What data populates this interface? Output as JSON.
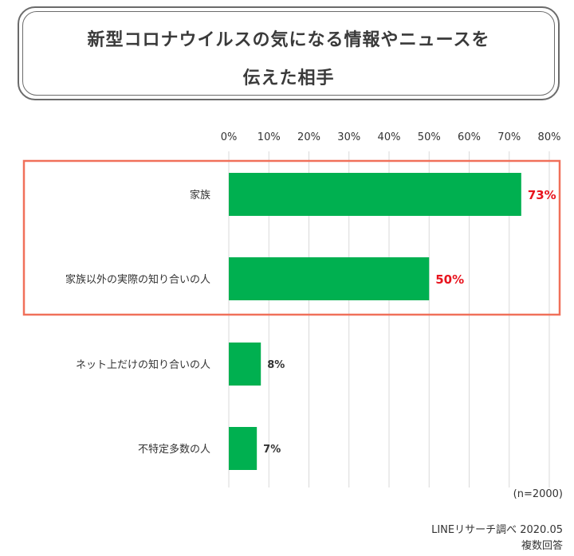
{
  "header": {
    "title_line1": "新型コロナウイルスの気になる情報やニュースを",
    "title_line2": "伝えた相手"
  },
  "chart_data": {
    "type": "bar",
    "orientation": "horizontal",
    "categories": [
      "家族",
      "家族以外の実際の知り合いの人",
      "ネット上だけの知り合いの人",
      "不特定多数の人"
    ],
    "values": [
      73,
      50,
      8,
      7
    ],
    "value_labels": [
      "73%",
      "50%",
      "8%",
      "7%"
    ],
    "highlighted": [
      true,
      true,
      false,
      false
    ],
    "xticks": [
      "0%",
      "10%",
      "20%",
      "30%",
      "40%",
      "50%",
      "60%",
      "70%",
      "80%"
    ],
    "xlim": [
      0,
      80
    ],
    "grid": true,
    "bar_color": "#00b050",
    "highlight_label_color": "#e8141e",
    "highlight_box_color": "#f0705a",
    "label_color": "#333333"
  },
  "footer": {
    "sample_note": "(n=2000)",
    "source": "LINEリサーチ調べ 2020.05",
    "answer_type": "複数回答"
  }
}
